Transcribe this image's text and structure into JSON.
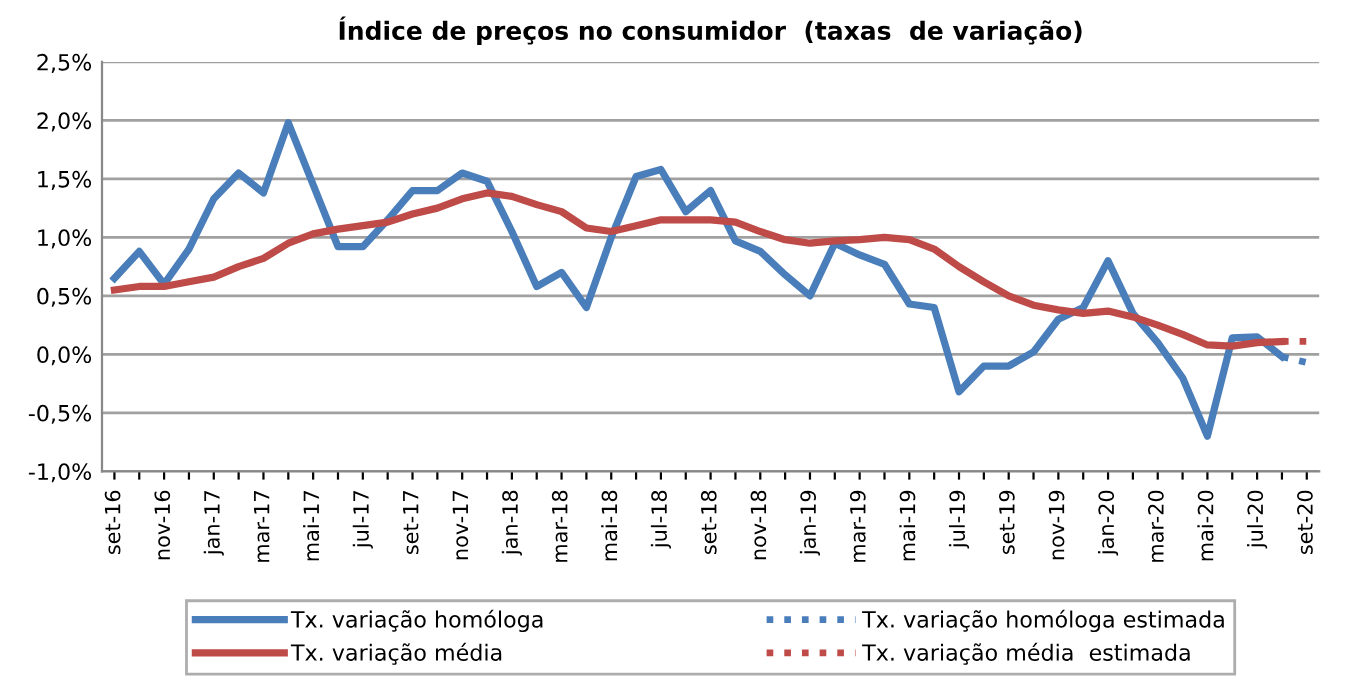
{
  "chart_data": {
    "type": "line",
    "title": "Índice de preços no consumidor  (taxas  de variação)",
    "categories": [
      "set-16",
      null,
      "nov-16",
      null,
      "jan-17",
      null,
      "mar-17",
      null,
      "mai-17",
      null,
      "jul-17",
      null,
      "set-17",
      null,
      "nov-17",
      null,
      "jan-18",
      null,
      "mar-18",
      null,
      "mai-18",
      null,
      "jul-18",
      null,
      "set-18",
      null,
      "nov-18",
      null,
      "jan-19",
      null,
      "mar-19",
      null,
      "mai-19",
      null,
      "jul-19",
      null,
      "set-19",
      null,
      "nov-19",
      null,
      "jan-20",
      null,
      "mar-20",
      null,
      "mai-20",
      null,
      "jul-20",
      null,
      "set-20"
    ],
    "series": [
      {
        "name": "Tx. variação homóloga",
        "color": "#4a7ebb",
        "line_style": "solid",
        "values": [
          0.65,
          0.88,
          0.6,
          0.9,
          1.33,
          1.55,
          1.38,
          1.98,
          1.45,
          0.92,
          0.92,
          1.15,
          1.4,
          1.4,
          1.55,
          1.48,
          1.05,
          0.58,
          0.7,
          0.4,
          1.0,
          1.52,
          1.58,
          1.22,
          1.4,
          0.97,
          0.88,
          0.68,
          0.5,
          0.95,
          0.85,
          0.77,
          0.43,
          0.4,
          -0.32,
          -0.1,
          -0.1,
          0.02,
          0.3,
          0.4,
          0.8,
          0.35,
          0.1,
          -0.2,
          -0.7,
          0.14,
          0.15,
          -0.02,
          null
        ]
      },
      {
        "name": "Tx. variação média",
        "color": "#be4b48",
        "line_style": "solid",
        "values": [
          0.55,
          0.58,
          0.58,
          0.62,
          0.66,
          0.75,
          0.82,
          0.95,
          1.03,
          1.07,
          1.1,
          1.13,
          1.2,
          1.25,
          1.33,
          1.38,
          1.35,
          1.28,
          1.22,
          1.08,
          1.05,
          1.1,
          1.15,
          1.15,
          1.15,
          1.13,
          1.05,
          0.98,
          0.95,
          0.97,
          0.98,
          1.0,
          0.98,
          0.9,
          0.75,
          0.62,
          0.5,
          0.42,
          0.38,
          0.35,
          0.37,
          0.32,
          0.25,
          0.17,
          0.08,
          0.07,
          0.1,
          0.11,
          null
        ]
      },
      {
        "name": "Tx. variação homóloga estimada",
        "color": "#4a7ebb",
        "line_style": "dotted",
        "values": [
          null,
          null,
          null,
          null,
          null,
          null,
          null,
          null,
          null,
          null,
          null,
          null,
          null,
          null,
          null,
          null,
          null,
          null,
          null,
          null,
          null,
          null,
          null,
          null,
          null,
          null,
          null,
          null,
          null,
          null,
          null,
          null,
          null,
          null,
          null,
          null,
          null,
          null,
          null,
          null,
          null,
          null,
          null,
          null,
          null,
          null,
          null,
          -0.02,
          -0.07
        ]
      },
      {
        "name": "Tx. variação média  estimada",
        "color": "#be4b48",
        "line_style": "dotted",
        "values": [
          null,
          null,
          null,
          null,
          null,
          null,
          null,
          null,
          null,
          null,
          null,
          null,
          null,
          null,
          null,
          null,
          null,
          null,
          null,
          null,
          null,
          null,
          null,
          null,
          null,
          null,
          null,
          null,
          null,
          null,
          null,
          null,
          null,
          null,
          null,
          null,
          null,
          null,
          null,
          null,
          null,
          null,
          null,
          null,
          null,
          null,
          null,
          0.11,
          0.11
        ]
      }
    ],
    "ylim": [
      -1.0,
      2.5
    ],
    "yticks": [
      {
        "value": -1.0,
        "label": "-1,0%"
      },
      {
        "value": -0.5,
        "label": "-0,5%"
      },
      {
        "value": 0.0,
        "label": "0,0%"
      },
      {
        "value": 0.5,
        "label": "0,5%"
      },
      {
        "value": 1.0,
        "label": "1,0%"
      },
      {
        "value": 1.5,
        "label": "1,5%"
      },
      {
        "value": 2.0,
        "label": "2,0%"
      },
      {
        "value": 2.5,
        "label": "2,5%"
      }
    ],
    "grid": "y",
    "legend": "bottom",
    "marker": "none"
  }
}
